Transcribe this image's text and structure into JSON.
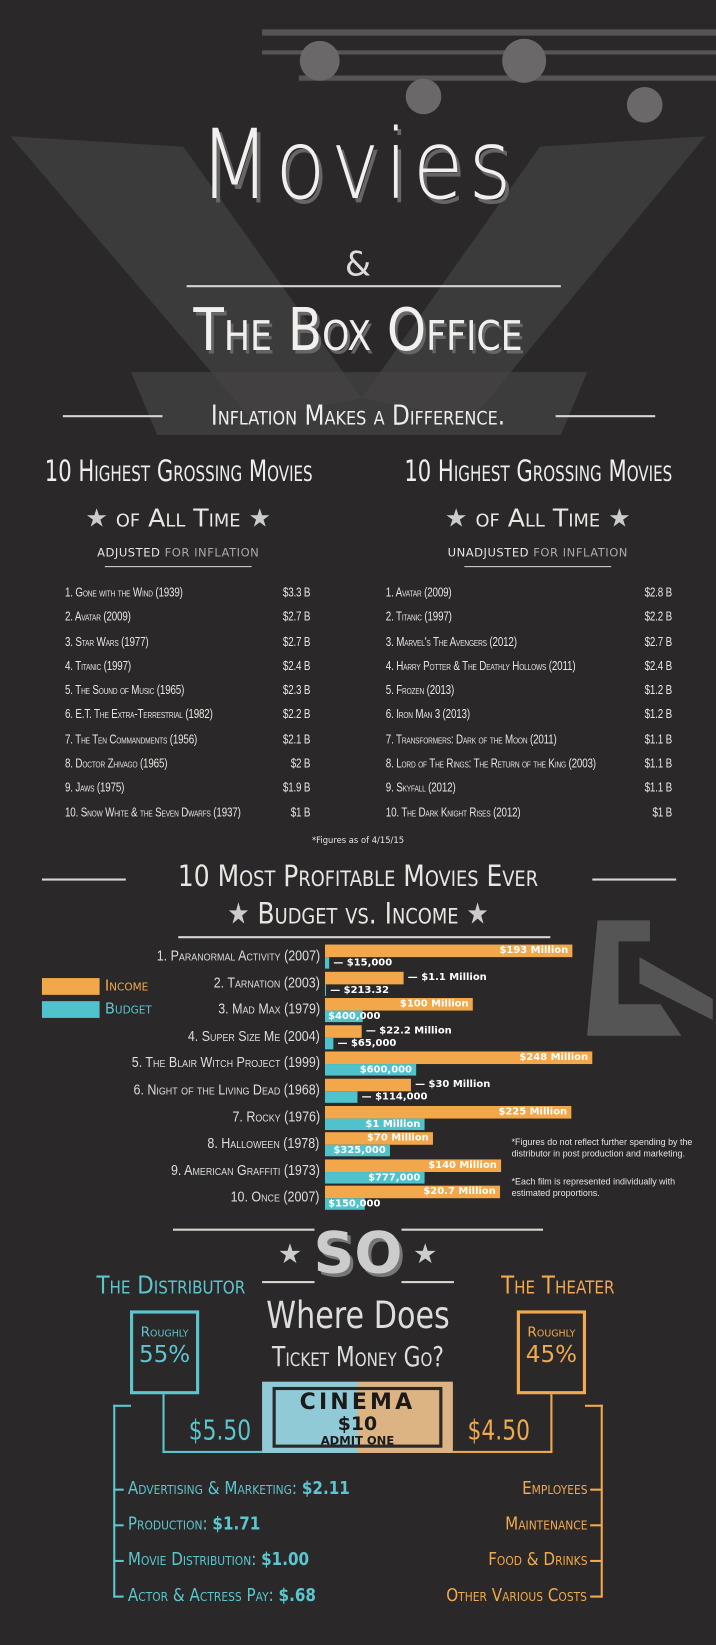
{
  "header": {
    "title": "Movies",
    "amp": "&",
    "title2": "The Box Office",
    "subtitle": "Inflation Makes a Difference."
  },
  "adjusted": {
    "heading": "10 Highest Grossing Movies",
    "heading2": "of All Time",
    "note_bold": "adjusted",
    "note_rest": " for inflation",
    "items": [
      [
        "1. Gone with the Wind (1939)",
        "$3.3 B"
      ],
      [
        "2. Avatar (2009)",
        "$2.7 B"
      ],
      [
        "3. Star Wars (1977)",
        "$2.7 B"
      ],
      [
        "4. Titanic (1997)",
        "$2.4 B"
      ],
      [
        "5. The Sound of Music (1965)",
        "$2.3 B"
      ],
      [
        "6. E.T. The Extra-Terrestrial (1982)",
        "$2.2 B"
      ],
      [
        "7. The Ten Commandments (1956)",
        "$2.1 B"
      ],
      [
        "8. Doctor Zhivago (1965)",
        "$2 B"
      ],
      [
        "9. Jaws (1975)",
        "$1.9 B"
      ],
      [
        "10. Snow White & the Seven Dwarfs (1937)",
        "$1 B"
      ]
    ]
  },
  "unadjusted": {
    "heading": "10 Highest Grossing Movies",
    "heading2": "of All Time",
    "note_bold": "unadjusted",
    "note_rest": " for inflation",
    "items": [
      [
        "1. Avatar (2009)",
        "$2.8 B"
      ],
      [
        "2. Titanic (1997)",
        "$2.2 B"
      ],
      [
        "3. Marvel's The Avengers (2012)",
        "$2.7 B"
      ],
      [
        "4. Harry Potter & The Deathly Hollows (2011)",
        "$2.4 B"
      ],
      [
        "5. Frozen (2013)",
        "$1.2 B"
      ],
      [
        "6. Iron Man 3 (2013)",
        "$1.2 B"
      ],
      [
        "7. Transformers: Dark of the Moon (2011)",
        "$1.1 B"
      ],
      [
        "8. Lord of The Rings: The Return of the King (2003)",
        "$1.1 B"
      ],
      [
        "9. Skyfall (2012)",
        "$1.1 B"
      ],
      [
        "10. The Dark Knight Rises (2012)",
        "$1 B"
      ]
    ]
  },
  "figures_note": "*Figures as of 4/15/15",
  "chart_data": {
    "type": "bar",
    "title": "10 Most Profitable Movies Ever",
    "subtitle": "Budget vs. Income",
    "legend": [
      "Income",
      "Budget"
    ],
    "legend_placement": "left",
    "colors": {
      "Income": "#f2a84a",
      "Budget": "#4fc2cc"
    },
    "categories": [
      "1. Paranormal Activity (2007)",
      "2. Tarnation (2003)",
      "3. Mad Max (1979)",
      "4. Super Size Me (2004)",
      "5. The Blair Witch Project (1999)",
      "6. Night of the Living Dead (1968)",
      "7. Rocky (1976)",
      "8. Halloween (1978)",
      "9. American Graffiti (1973)",
      "10. Once (2007)"
    ],
    "series": [
      {
        "name": "Income",
        "values": [
          193000000,
          1100000,
          100000000,
          22200000,
          248000000,
          30000000,
          225000000,
          70000000,
          140000000,
          20700000
        ],
        "labels": [
          "$193 Million",
          "$1.1 Million",
          "$100 Million",
          "$22.2 Million",
          "$248 Million",
          "$30 Million",
          "$225 Million",
          "$70 Million",
          "$140 Million",
          "$20.7 Million"
        ]
      },
      {
        "name": "Budget",
        "values": [
          15000,
          213.32,
          400000,
          65000,
          600000,
          114000,
          1000000,
          325000,
          777000,
          150000
        ],
        "labels": [
          "$15,000",
          "$213.32",
          "$400,000",
          "$65,000",
          "$600,000",
          "$114,000",
          "$1 Million",
          "$325,000",
          "$777,000",
          "$150,000"
        ]
      }
    ],
    "notes": [
      "*Figures do not reflect further spending by the distributor in post production and marketing.",
      "*Each film is represented individually with estimated proportions."
    ]
  },
  "ticket": {
    "so": "SO",
    "where": "Where Does",
    "ticket_money": "Ticket Money Go?",
    "cinema": "CINEMA",
    "price": "$10",
    "admit": "ADMIT ONE",
    "distributor": {
      "title": "The Distributor",
      "roughly": "Roughly",
      "pct": "55%",
      "amount": "$5.50",
      "items": [
        [
          "Advertising & Marketing: ",
          "$2.11"
        ],
        [
          "Production: ",
          "$1.71"
        ],
        [
          "Movie Distribution: ",
          "$1.00"
        ],
        [
          "Actor & Actress Pay: ",
          "$.68"
        ]
      ]
    },
    "theater": {
      "title": "The Theater",
      "roughly": "Roughly",
      "pct": "45%",
      "amount": "$4.50",
      "items": [
        "Employees",
        "Maintenance",
        "Food & Drinks",
        "Other Various Costs"
      ]
    }
  }
}
